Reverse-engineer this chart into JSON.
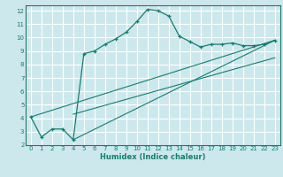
{
  "xlabel": "Humidex (Indice chaleur)",
  "background_color": "#cce8ec",
  "grid_color": "#ffffff",
  "line_color": "#1a7a6e",
  "xlim": [
    -0.5,
    23.5
  ],
  "ylim": [
    2,
    12.4
  ],
  "xticks": [
    0,
    1,
    2,
    3,
    4,
    5,
    6,
    7,
    8,
    9,
    10,
    11,
    12,
    13,
    14,
    15,
    16,
    17,
    18,
    19,
    20,
    21,
    22,
    23
  ],
  "yticks": [
    2,
    3,
    4,
    5,
    6,
    7,
    8,
    9,
    10,
    11,
    12
  ],
  "main_x": [
    0,
    1,
    2,
    3,
    4,
    5,
    6,
    7,
    8,
    9,
    10,
    11,
    12,
    13,
    14,
    15,
    16,
    17,
    18,
    19,
    20,
    21,
    22,
    23
  ],
  "main_y": [
    4.1,
    2.6,
    3.2,
    3.2,
    2.4,
    8.8,
    9.0,
    9.5,
    9.9,
    10.4,
    11.2,
    12.1,
    12.0,
    11.6,
    10.1,
    9.7,
    9.3,
    9.5,
    9.5,
    9.6,
    9.4,
    9.4,
    9.5,
    9.8
  ],
  "line1_x": [
    0,
    23
  ],
  "line1_y": [
    4.1,
    9.8
  ],
  "line2_x": [
    4,
    23
  ],
  "line2_y": [
    2.4,
    9.8
  ],
  "line3_x": [
    4,
    23
  ],
  "line3_y": [
    4.3,
    8.5
  ]
}
